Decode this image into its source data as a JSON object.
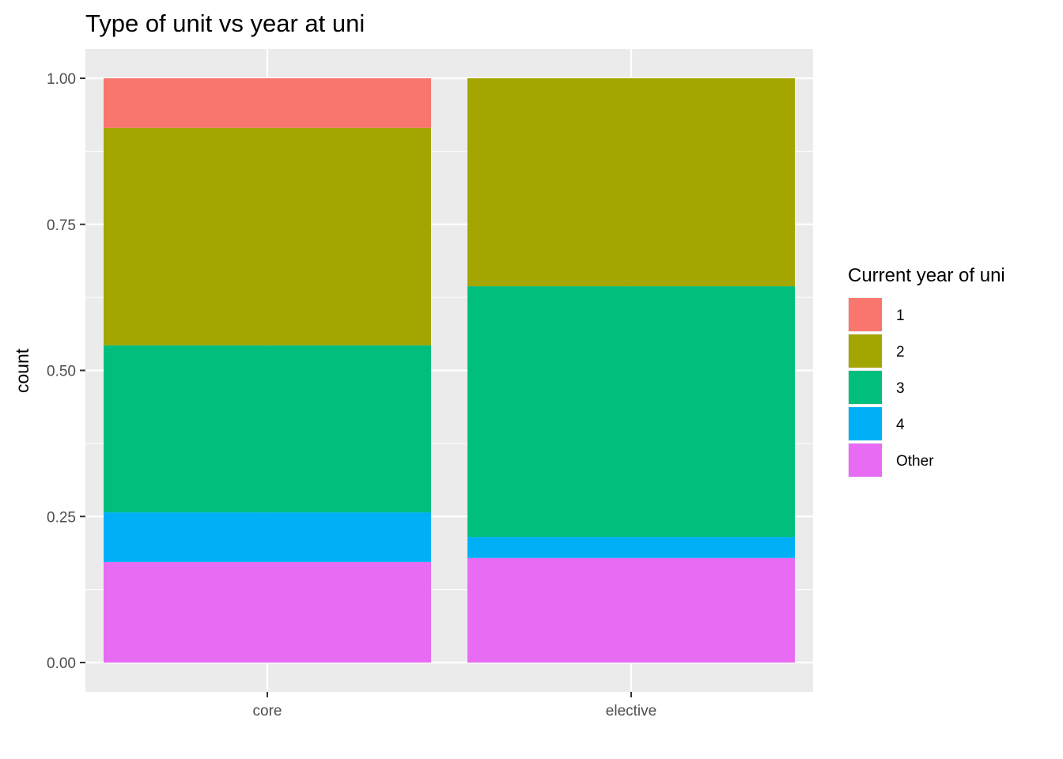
{
  "chart_data": {
    "type": "bar",
    "stacked": true,
    "title": "Type of unit vs year at uni",
    "xlabel": "",
    "ylabel": "count",
    "categories": [
      "core",
      "elective"
    ],
    "ylim": [
      0,
      1
    ],
    "yticks": [
      "0.00",
      "0.25",
      "0.50",
      "0.75",
      "1.00"
    ],
    "grid": true,
    "legend": {
      "title": "Current year of uni",
      "position": "right"
    },
    "series": [
      {
        "name": "1",
        "color": "#F8766D",
        "values": [
          0.085,
          0.0
        ]
      },
      {
        "name": "2",
        "color": "#A3A500",
        "values": [
          0.372,
          0.356
        ]
      },
      {
        "name": "3",
        "color": "#00BF7D",
        "values": [
          0.286,
          0.429
        ]
      },
      {
        "name": "4",
        "color": "#00B0F6",
        "values": [
          0.085,
          0.036
        ]
      },
      {
        "name": "Other",
        "color": "#E76BF3",
        "values": [
          0.172,
          0.179
        ]
      }
    ]
  }
}
